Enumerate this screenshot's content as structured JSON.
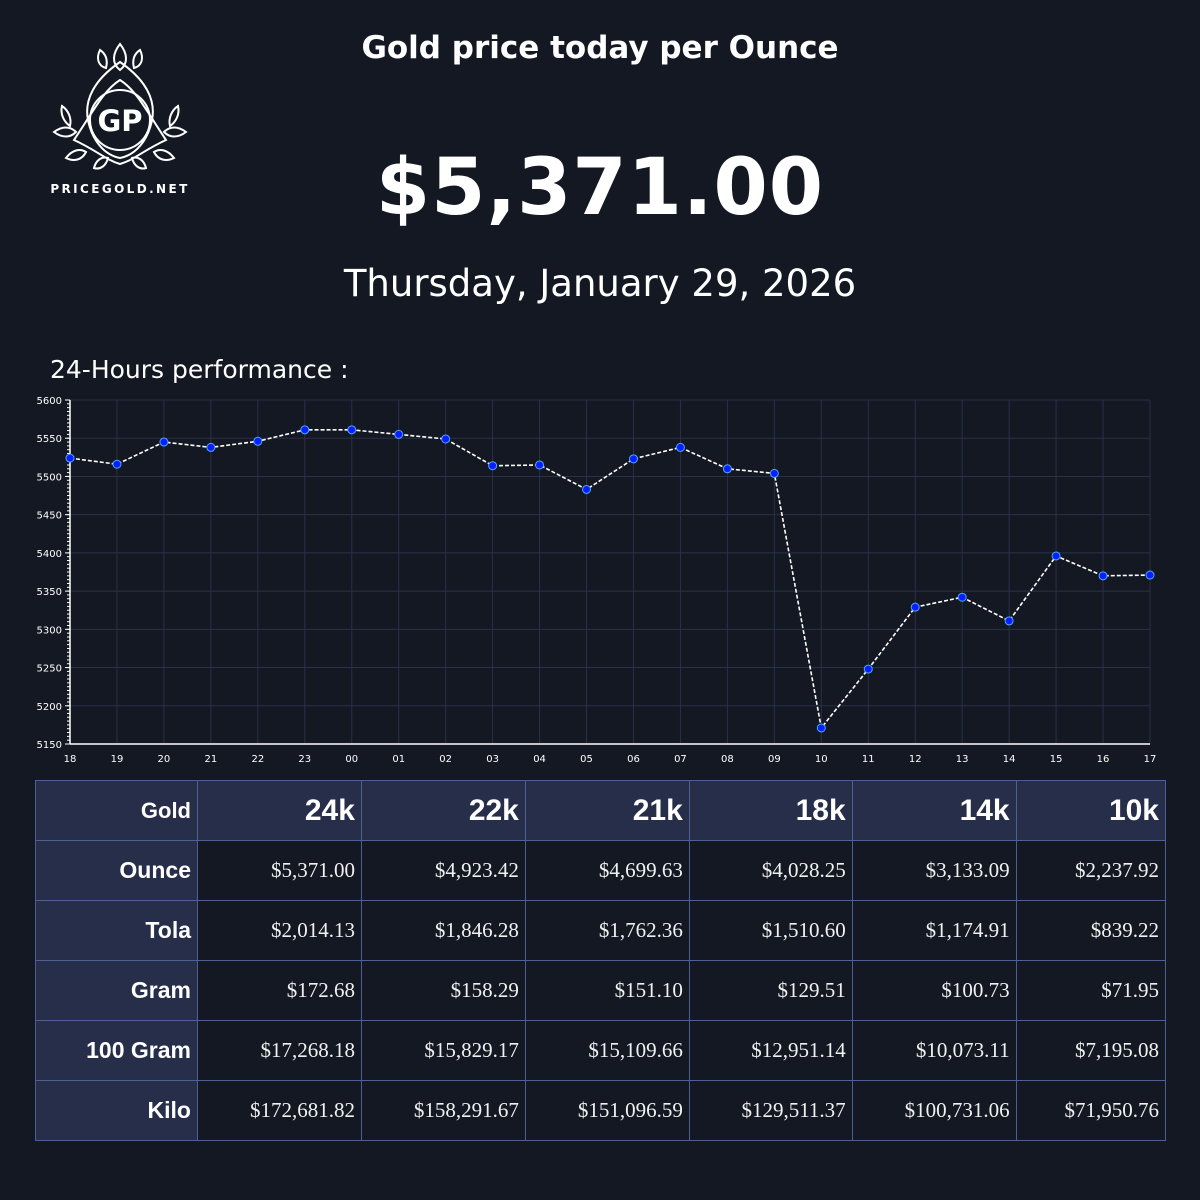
{
  "brand": {
    "logo_monogram": "GP",
    "logo_text": "PRICEGOLD.NET"
  },
  "header": {
    "title": "Gold price today per Ounce",
    "price": "$5,371.00",
    "date": "Thursday, January 29, 2026"
  },
  "performance": {
    "label": "24-Hours performance :"
  },
  "colors": {
    "background": "#141822",
    "grid": "#2a3048",
    "line": "#ffffff",
    "marker_fill": "#0a1eff",
    "marker_edge": "#4aa8ff",
    "table_header_bg": "#262e4a",
    "table_border": "#4e5f94"
  },
  "chart_data": {
    "type": "line",
    "title": "24-Hours performance :",
    "xlabel": "",
    "ylabel": "",
    "ylim": [
      5150,
      5600
    ],
    "yticks": [
      5150,
      5200,
      5250,
      5300,
      5350,
      5400,
      5450,
      5500,
      5550,
      5600
    ],
    "grid": true,
    "legend": null,
    "x": [
      "18",
      "19",
      "20",
      "21",
      "22",
      "23",
      "00",
      "01",
      "02",
      "03",
      "04",
      "05",
      "06",
      "07",
      "08",
      "09",
      "10",
      "11",
      "12",
      "13",
      "14",
      "15",
      "16",
      "17"
    ],
    "series": [
      {
        "name": "Gold price (USD/oz)",
        "style": "dashed white line with blue markers",
        "values": [
          5524,
          5516,
          5545,
          5538,
          5546,
          5561,
          5561,
          5555,
          5549,
          5514,
          5515,
          5483,
          5523,
          5538,
          5510,
          5504,
          5171,
          5248,
          5329,
          5342,
          5311,
          5396,
          5370,
          5371
        ]
      }
    ]
  },
  "table": {
    "corner": "Gold",
    "karats": [
      "24k",
      "22k",
      "21k",
      "18k",
      "14k",
      "10k"
    ],
    "rows": [
      {
        "label": "Ounce",
        "values": [
          "$5,371.00",
          "$4,923.42",
          "$4,699.63",
          "$4,028.25",
          "$3,133.09",
          "$2,237.92"
        ]
      },
      {
        "label": "Tola",
        "values": [
          "$2,014.13",
          "$1,846.28",
          "$1,762.36",
          "$1,510.60",
          "$1,174.91",
          "$839.22"
        ]
      },
      {
        "label": "Gram",
        "values": [
          "$172.68",
          "$158.29",
          "$151.10",
          "$129.51",
          "$100.73",
          "$71.95"
        ]
      },
      {
        "label": "100 Gram",
        "values": [
          "$17,268.18",
          "$15,829.17",
          "$15,109.66",
          "$12,951.14",
          "$10,073.11",
          "$7,195.08"
        ]
      },
      {
        "label": "Kilo",
        "values": [
          "$172,681.82",
          "$158,291.67",
          "$151,096.59",
          "$129,511.37",
          "$100,731.06",
          "$71,950.76"
        ]
      }
    ]
  }
}
